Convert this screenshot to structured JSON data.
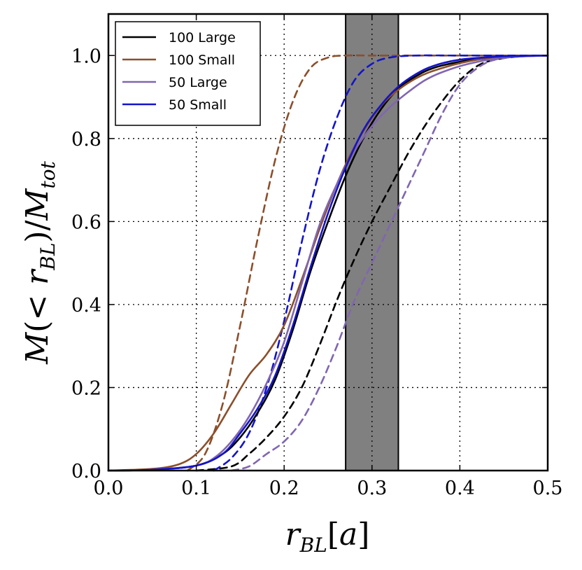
{
  "chart_data": {
    "type": "line",
    "title": "",
    "xlabel": "r_BL[a]",
    "ylabel": "M(< r_BL)/M_tot",
    "xlim": [
      0.0,
      0.5
    ],
    "ylim": [
      0.0,
      1.1
    ],
    "xticks": [
      "0.0",
      "0.1",
      "0.2",
      "0.3",
      "0.4",
      "0.5"
    ],
    "yticks": [
      "0.0",
      "0.2",
      "0.4",
      "0.6",
      "0.8",
      "1.0"
    ],
    "xtick_values": [
      0.0,
      0.1,
      0.2,
      0.3,
      0.4,
      0.5
    ],
    "ytick_values": [
      0.0,
      0.2,
      0.4,
      0.6,
      0.8,
      1.0
    ],
    "grid": true,
    "legend_position": "top-left",
    "shaded_band": {
      "x_range": [
        0.27,
        0.33
      ],
      "color": "#808080"
    },
    "series": [
      {
        "name": "100 Large",
        "color": "#000000",
        "style": "solid",
        "x": [
          0,
          0.05,
          0.1,
          0.13,
          0.15,
          0.17,
          0.19,
          0.21,
          0.23,
          0.25,
          0.27,
          0.29,
          0.31,
          0.33,
          0.35,
          0.37,
          0.4,
          0.43,
          0.46,
          0.5
        ],
        "y": [
          0,
          0.002,
          0.012,
          0.04,
          0.08,
          0.14,
          0.22,
          0.34,
          0.48,
          0.6,
          0.71,
          0.8,
          0.87,
          0.92,
          0.95,
          0.97,
          0.985,
          0.994,
          0.998,
          1.0
        ]
      },
      {
        "name": "100 Small",
        "color": "#8b4f2b",
        "style": "solid",
        "x": [
          0,
          0.05,
          0.08,
          0.1,
          0.12,
          0.14,
          0.16,
          0.18,
          0.2,
          0.22,
          0.24,
          0.26,
          0.28,
          0.3,
          0.32,
          0.35,
          0.38,
          0.42,
          0.46,
          0.5
        ],
        "y": [
          0,
          0.004,
          0.015,
          0.04,
          0.09,
          0.16,
          0.23,
          0.28,
          0.35,
          0.46,
          0.58,
          0.69,
          0.78,
          0.85,
          0.9,
          0.945,
          0.97,
          0.99,
          0.997,
          1.0
        ]
      },
      {
        "name": "50 Large",
        "color": "#8066b0",
        "style": "solid",
        "x": [
          0,
          0.05,
          0.1,
          0.12,
          0.14,
          0.16,
          0.18,
          0.2,
          0.22,
          0.24,
          0.26,
          0.28,
          0.3,
          0.32,
          0.34,
          0.36,
          0.38,
          0.41,
          0.45,
          0.5
        ],
        "y": [
          0,
          0.002,
          0.012,
          0.03,
          0.07,
          0.13,
          0.21,
          0.31,
          0.45,
          0.59,
          0.69,
          0.77,
          0.83,
          0.875,
          0.91,
          0.94,
          0.96,
          0.98,
          0.995,
          1.0
        ]
      },
      {
        "name": "50 Small",
        "color": "#1414c8",
        "style": "solid",
        "x": [
          0,
          0.05,
          0.1,
          0.13,
          0.15,
          0.17,
          0.19,
          0.21,
          0.23,
          0.25,
          0.27,
          0.29,
          0.31,
          0.33,
          0.35,
          0.37,
          0.4,
          0.44,
          0.47,
          0.5
        ],
        "y": [
          0,
          0.002,
          0.012,
          0.04,
          0.09,
          0.15,
          0.23,
          0.35,
          0.49,
          0.62,
          0.73,
          0.82,
          0.88,
          0.925,
          0.955,
          0.975,
          0.99,
          0.997,
          0.999,
          1.0
        ]
      },
      {
        "name": "",
        "color": "#000000",
        "style": "dashed",
        "x": [
          0.1,
          0.14,
          0.16,
          0.18,
          0.2,
          0.22,
          0.24,
          0.26,
          0.28,
          0.3,
          0.32,
          0.34,
          0.36,
          0.38,
          0.4,
          0.42,
          0.44,
          0.47,
          0.5
        ],
        "y": [
          0,
          0.01,
          0.04,
          0.08,
          0.13,
          0.2,
          0.3,
          0.41,
          0.51,
          0.6,
          0.68,
          0.76,
          0.83,
          0.89,
          0.94,
          0.975,
          0.99,
          0.998,
          1.0
        ]
      },
      {
        "name": "",
        "color": "#8b4f2b",
        "style": "dashed",
        "x": [
          0.09,
          0.11,
          0.13,
          0.15,
          0.17,
          0.19,
          0.21,
          0.23,
          0.25,
          0.27,
          0.3,
          0.35,
          0.4,
          0.5
        ],
        "y": [
          0,
          0.04,
          0.16,
          0.35,
          0.56,
          0.75,
          0.89,
          0.97,
          0.995,
          1.0,
          1.0,
          1.0,
          1.0,
          1.0
        ]
      },
      {
        "name": "",
        "color": "#8066b0",
        "style": "dashed",
        "x": [
          0.14,
          0.16,
          0.18,
          0.2,
          0.22,
          0.24,
          0.26,
          0.28,
          0.3,
          0.32,
          0.34,
          0.36,
          0.38,
          0.4,
          0.42,
          0.44,
          0.47,
          0.5
        ],
        "y": [
          0,
          0.01,
          0.04,
          0.07,
          0.12,
          0.2,
          0.3,
          0.41,
          0.5,
          0.59,
          0.68,
          0.77,
          0.86,
          0.93,
          0.97,
          0.99,
          0.998,
          1.0
        ]
      },
      {
        "name": "",
        "color": "#1414c8",
        "style": "dashed",
        "x": [
          0.12,
          0.14,
          0.16,
          0.18,
          0.2,
          0.22,
          0.24,
          0.26,
          0.28,
          0.3,
          0.32,
          0.35,
          0.4,
          0.5
        ],
        "y": [
          0,
          0.03,
          0.09,
          0.2,
          0.36,
          0.55,
          0.72,
          0.85,
          0.94,
          0.98,
          0.995,
          1.0,
          1.0,
          1.0
        ]
      }
    ]
  }
}
